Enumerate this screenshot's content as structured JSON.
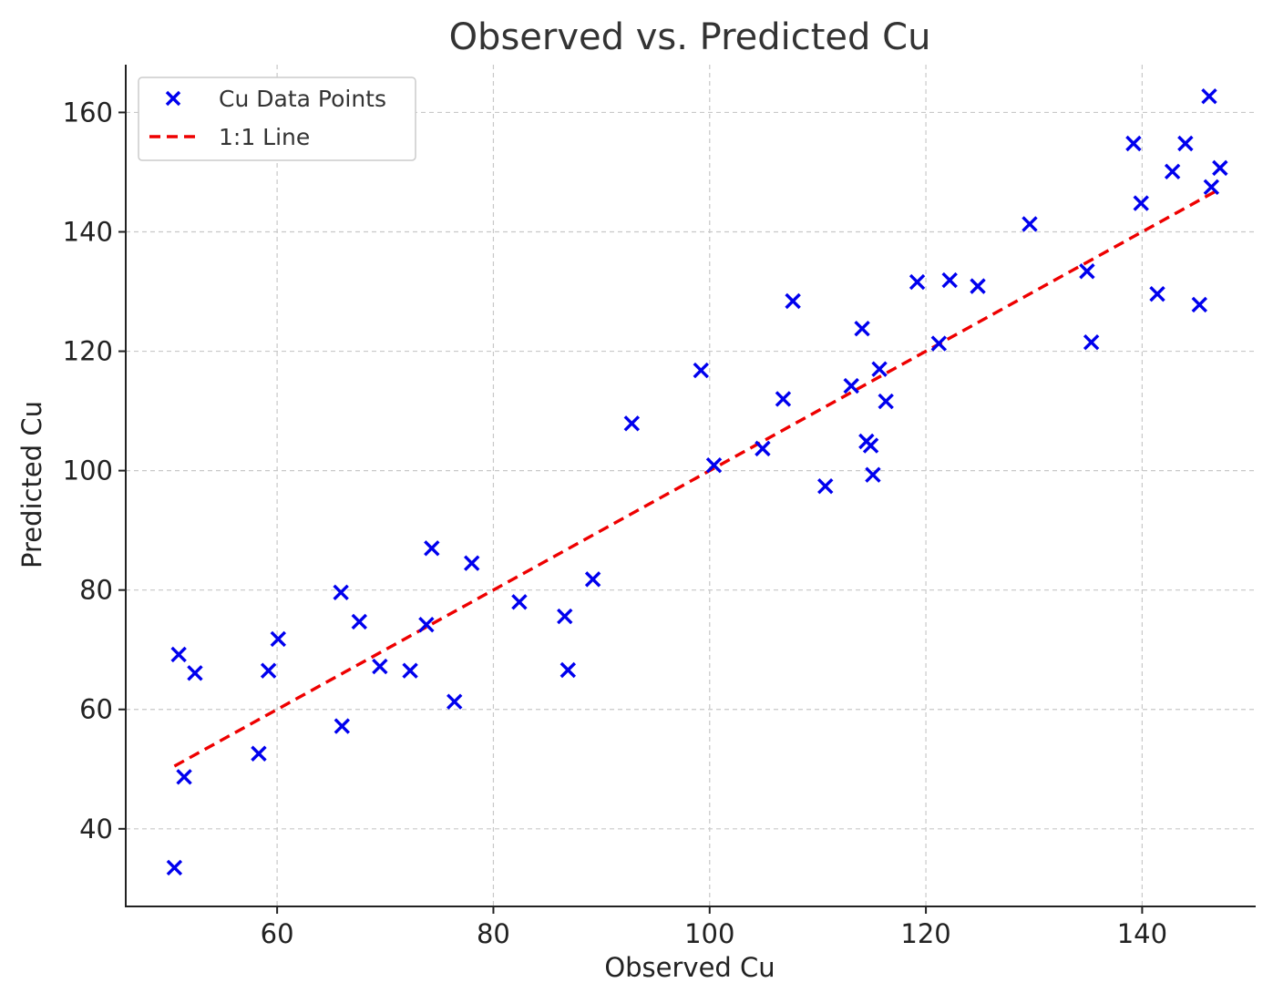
{
  "chart_data": {
    "type": "scatter",
    "title": "Observed vs. Predicted Cu",
    "xlabel": "Observed Cu",
    "ylabel": "Predicted Cu",
    "xlim": [
      46,
      150.5
    ],
    "ylim": [
      27,
      168
    ],
    "xticks": [
      60,
      80,
      100,
      120,
      140
    ],
    "yticks": [
      40,
      60,
      80,
      100,
      120,
      140,
      160
    ],
    "grid": true,
    "legend_position": "top-left",
    "series": [
      {
        "name": "Cu Data Points",
        "kind": "scatter",
        "marker": "x",
        "color": "#0000ee",
        "points": [
          [
            50.5,
            33.5
          ],
          [
            50.9,
            69.2
          ],
          [
            51.4,
            48.7
          ],
          [
            52.4,
            66.1
          ],
          [
            58.3,
            52.6
          ],
          [
            59.2,
            66.5
          ],
          [
            60.1,
            71.8
          ],
          [
            65.9,
            79.6
          ],
          [
            66.0,
            57.2
          ],
          [
            67.6,
            74.7
          ],
          [
            69.5,
            67.2
          ],
          [
            72.3,
            66.5
          ],
          [
            73.8,
            74.2
          ],
          [
            74.3,
            87.0
          ],
          [
            76.4,
            61.3
          ],
          [
            78.0,
            84.5
          ],
          [
            82.4,
            78.0
          ],
          [
            86.6,
            75.6
          ],
          [
            86.9,
            66.6
          ],
          [
            89.2,
            81.8
          ],
          [
            92.8,
            107.9
          ],
          [
            99.2,
            116.8
          ],
          [
            100.4,
            100.9
          ],
          [
            104.9,
            103.7
          ],
          [
            106.8,
            112.0
          ],
          [
            107.7,
            128.4
          ],
          [
            110.7,
            97.4
          ],
          [
            113.1,
            114.2
          ],
          [
            114.1,
            123.8
          ],
          [
            114.5,
            104.9
          ],
          [
            114.9,
            104.2
          ],
          [
            115.1,
            99.3
          ],
          [
            115.7,
            117.0
          ],
          [
            116.3,
            111.6
          ],
          [
            119.2,
            131.6
          ],
          [
            121.2,
            121.3
          ],
          [
            122.2,
            131.9
          ],
          [
            124.8,
            130.9
          ],
          [
            129.6,
            141.3
          ],
          [
            134.9,
            133.4
          ],
          [
            135.3,
            121.5
          ],
          [
            139.2,
            154.8
          ],
          [
            139.9,
            144.8
          ],
          [
            141.4,
            129.6
          ],
          [
            142.8,
            150.1
          ],
          [
            144.0,
            154.8
          ],
          [
            145.3,
            127.8
          ],
          [
            146.2,
            162.7
          ],
          [
            146.4,
            147.5
          ],
          [
            147.2,
            150.7
          ]
        ]
      },
      {
        "name": "1:1 Line",
        "kind": "line",
        "style": "dashed",
        "color": "#ee0000",
        "x": [
          50.5,
          147.2
        ],
        "y": [
          50.5,
          147.2
        ]
      }
    ]
  }
}
